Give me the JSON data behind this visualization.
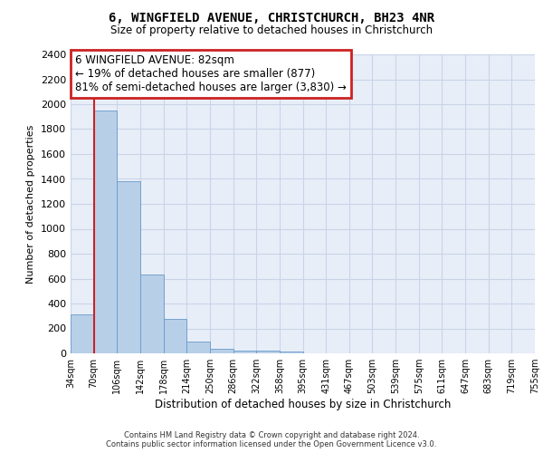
{
  "title1": "6, WINGFIELD AVENUE, CHRISTCHURCH, BH23 4NR",
  "title2": "Size of property relative to detached houses in Christchurch",
  "xlabel": "Distribution of detached houses by size in Christchurch",
  "ylabel": "Number of detached properties",
  "footer1": "Contains HM Land Registry data © Crown copyright and database right 2024.",
  "footer2": "Contains public sector information licensed under the Open Government Licence v3.0.",
  "bin_labels": [
    "34sqm",
    "70sqm",
    "106sqm",
    "142sqm",
    "178sqm",
    "214sqm",
    "250sqm",
    "286sqm",
    "322sqm",
    "358sqm",
    "395sqm",
    "431sqm",
    "467sqm",
    "503sqm",
    "539sqm",
    "575sqm",
    "611sqm",
    "647sqm",
    "683sqm",
    "719sqm",
    "755sqm"
  ],
  "bar_values": [
    310,
    1950,
    1380,
    630,
    275,
    95,
    40,
    25,
    20,
    15,
    0,
    0,
    0,
    0,
    0,
    0,
    0,
    0,
    0,
    0
  ],
  "bar_color": "#b8cfe8",
  "bar_edge_color": "#6699cc",
  "grid_color": "#c8d4e8",
  "bg_color": "#e8eef8",
  "annotation_text": "6 WINGFIELD AVENUE: 82sqm\n← 19% of detached houses are smaller (877)\n81% of semi-detached houses are larger (3,830) →",
  "annotation_box_facecolor": "#ffffff",
  "annotation_box_edgecolor": "#cc2222",
  "red_line_color": "#cc2222",
  "ylim": [
    0,
    2400
  ],
  "ytick_step": 200
}
